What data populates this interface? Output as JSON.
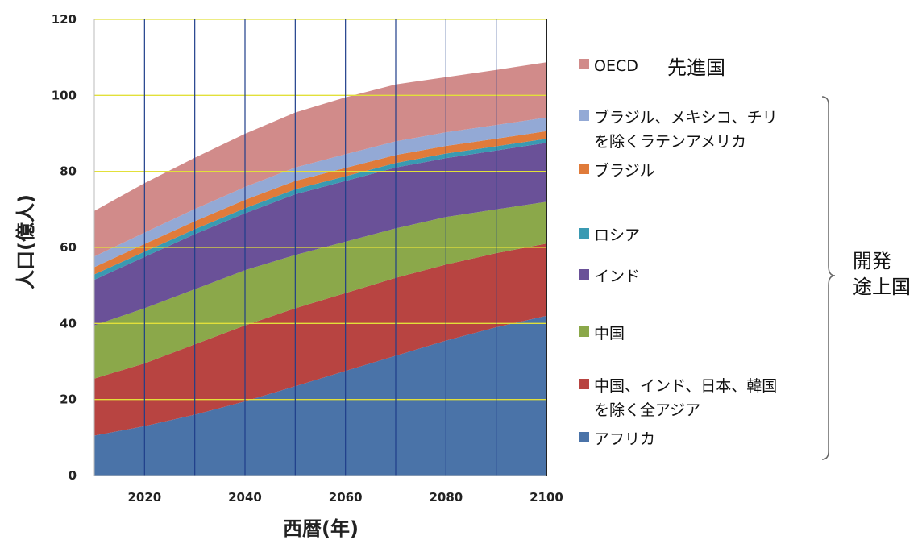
{
  "chart_data": {
    "type": "area",
    "stacked": true,
    "ylabel": "人口(億人)",
    "xlabel": "西暦(年)",
    "xlim": [
      2010,
      2100
    ],
    "ylim": [
      0,
      120
    ],
    "yticks": [
      "0",
      "20",
      "40",
      "60",
      "80",
      "100",
      "120"
    ],
    "xticks": [
      "2020",
      "2040",
      "2060",
      "2080",
      "2100"
    ],
    "x": [
      2010,
      2020,
      2030,
      2040,
      2050,
      2060,
      2070,
      2080,
      2090,
      2100
    ],
    "series": [
      {
        "name": "アフリカ",
        "color": "#4a73a8",
        "values": [
          10.5,
          13,
          16,
          19.5,
          23.5,
          27.5,
          31.5,
          35.5,
          39,
          42
        ]
      },
      {
        "name": "中国、インド、日本、韓国\nを除く全アジア",
        "color": "#b84441",
        "values": [
          15,
          16.5,
          18.5,
          20,
          20.5,
          20.5,
          20.5,
          20,
          19.5,
          19
        ]
      },
      {
        "name": "中国",
        "color": "#8ba84a",
        "values": [
          14,
          14.5,
          14.5,
          14.5,
          14,
          13.5,
          13,
          12.5,
          11.5,
          11
        ]
      },
      {
        "name": "インド",
        "color": "#6a5198",
        "values": [
          12,
          13.5,
          14.5,
          15,
          16,
          16,
          16,
          15.5,
          15.5,
          15.5
        ]
      },
      {
        "name": "ロシア",
        "color": "#3a9ab2",
        "values": [
          1.4,
          1.4,
          1.3,
          1.3,
          1.3,
          1.2,
          1.2,
          1.2,
          1.1,
          1.1
        ]
      },
      {
        "name": "ブラジル",
        "color": "#e07b3a",
        "values": [
          1.9,
          2.0,
          2.1,
          2.2,
          2.2,
          2.2,
          2.1,
          2.0,
          2.0,
          2.0
        ]
      },
      {
        "name": "ブラジル、メキシコ、チリ\nを除くラテンアメリカ",
        "color": "#93a9d5",
        "values": [
          2.8,
          3.0,
          3.2,
          3.4,
          3.5,
          3.6,
          3.6,
          3.6,
          3.6,
          3.6
        ]
      },
      {
        "name": "OECD",
        "color": "#d18b8a",
        "values": [
          12,
          13,
          13.5,
          14,
          14.5,
          15,
          15,
          14.5,
          14.5,
          14.5
        ]
      }
    ],
    "grid": {
      "horizontal": true,
      "vertical": true,
      "horizontal_color": "#e2e03a",
      "vertical_color": "#1f3e8a"
    },
    "legend_position": "right"
  },
  "legend_note": "先進国",
  "group_label": "開発\n途上国"
}
